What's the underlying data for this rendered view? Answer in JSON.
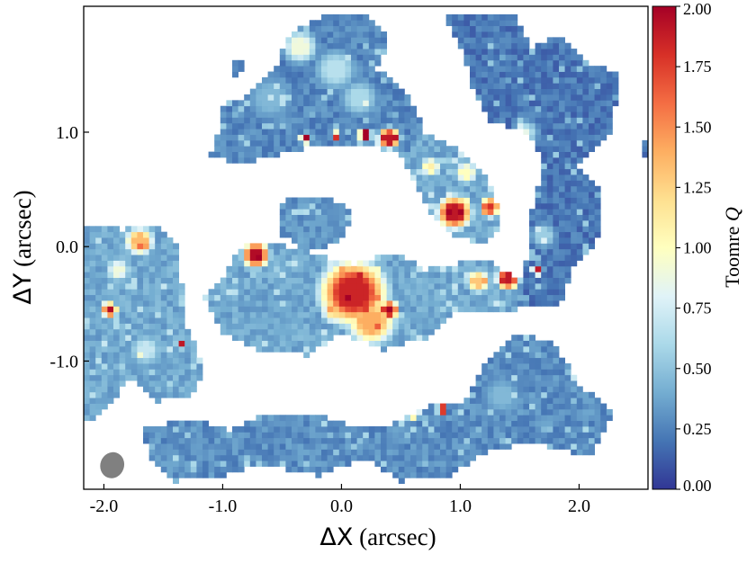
{
  "chart_data": {
    "type": "heatmap",
    "title": "",
    "xlabel": {
      "symbol": "ΔX",
      "unit": "(arcsec)"
    },
    "ylabel": {
      "symbol": "ΔY",
      "unit": "(arcsec)"
    },
    "xlim": [
      -2.17,
      2.58
    ],
    "ylim": [
      -2.12,
      2.1
    ],
    "x_ticks": [
      -2.0,
      -1.0,
      0.0,
      1.0,
      2.0
    ],
    "x_tick_labels": [
      "-2.0",
      "-1.0",
      "0.0",
      "1.0",
      "2.0"
    ],
    "y_ticks": [
      -1.0,
      0.0,
      1.0
    ],
    "y_tick_labels": [
      "-1.0",
      "0.0",
      "1.0"
    ],
    "colorbar": {
      "label_text": "Toomre ",
      "label_symbol": "Q",
      "range": [
        0.0,
        2.0
      ],
      "ticks": [
        0.0,
        0.25,
        0.5,
        0.75,
        1.0,
        1.25,
        1.5,
        1.75,
        2.0
      ],
      "tick_labels": [
        "0.00",
        "0.25",
        "0.50",
        "0.75",
        "1.00",
        "1.25",
        "1.50",
        "1.75",
        "2.00"
      ],
      "colormap": "RdYlBu_r",
      "colormap_stops": [
        "#313695",
        "#4575b4",
        "#74add1",
        "#abd9e9",
        "#e0f3f8",
        "#ffffbf",
        "#fee090",
        "#fdae61",
        "#f46d43",
        "#d73027",
        "#a50026"
      ]
    },
    "beam": {
      "x": -1.93,
      "y": -1.91,
      "major": 0.23,
      "minor": 0.2,
      "angle_deg": 20,
      "color": "#808080"
    },
    "regions": [
      {
        "name": "north-arc",
        "poly": [
          [
            -1.05,
            0.95
          ],
          [
            -1.0,
            1.25
          ],
          [
            -0.8,
            1.3
          ],
          [
            -0.55,
            1.55
          ],
          [
            -0.45,
            1.85
          ],
          [
            -0.1,
            2.05
          ],
          [
            0.25,
            2.0
          ],
          [
            0.4,
            1.8
          ],
          [
            0.3,
            1.55
          ],
          [
            0.55,
            1.35
          ],
          [
            0.7,
            1.05
          ],
          [
            0.55,
            0.8
          ],
          [
            0.25,
            0.88
          ],
          [
            -0.15,
            0.9
          ],
          [
            -0.6,
            0.78
          ],
          [
            -0.9,
            0.72
          ],
          [
            -1.1,
            0.8
          ]
        ],
        "base": 0.18
      },
      {
        "name": "north-spot",
        "poly": [
          [
            -0.95,
            1.6
          ],
          [
            -0.85,
            1.65
          ],
          [
            -0.8,
            1.55
          ],
          [
            -0.9,
            1.5
          ]
        ],
        "base": 0.15
      },
      {
        "name": "east-ridge",
        "poly": [
          [
            0.85,
            2.05
          ],
          [
            1.45,
            2.05
          ],
          [
            1.6,
            1.75
          ],
          [
            1.85,
            1.85
          ],
          [
            2.1,
            1.6
          ],
          [
            2.35,
            1.5
          ],
          [
            2.25,
            0.95
          ],
          [
            2.0,
            0.7
          ],
          [
            2.2,
            0.45
          ],
          [
            2.15,
            0.05
          ],
          [
            1.95,
            -0.2
          ],
          [
            1.85,
            -0.5
          ],
          [
            1.5,
            -0.5
          ],
          [
            1.55,
            -0.15
          ],
          [
            1.6,
            0.3
          ],
          [
            1.7,
            0.75
          ],
          [
            1.55,
            1.0
          ],
          [
            1.25,
            1.1
          ],
          [
            1.1,
            1.4
          ],
          [
            1.0,
            1.75
          ]
        ],
        "base": 0.12
      },
      {
        "name": "east-edge",
        "poly": [
          [
            2.55,
            0.95
          ],
          [
            2.6,
            0.8
          ],
          [
            2.5,
            0.7
          ]
        ],
        "base": 0.12
      },
      {
        "name": "center-arm",
        "poly": [
          [
            0.55,
            1.0
          ],
          [
            0.8,
            0.95
          ],
          [
            1.05,
            0.8
          ],
          [
            1.25,
            0.55
          ],
          [
            1.35,
            0.2
          ],
          [
            1.2,
            0.0
          ],
          [
            0.95,
            0.1
          ],
          [
            0.75,
            0.3
          ],
          [
            0.6,
            0.6
          ],
          [
            0.45,
            0.85
          ]
        ],
        "base": 0.3
      },
      {
        "name": "left-blob",
        "poly": [
          [
            -0.5,
            0.4
          ],
          [
            -0.15,
            0.45
          ],
          [
            0.1,
            0.3
          ],
          [
            0.0,
            0.05
          ],
          [
            -0.3,
            -0.05
          ],
          [
            -0.5,
            0.1
          ]
        ],
        "base": 0.22
      },
      {
        "name": "core-bar",
        "poly": [
          [
            -0.85,
            0.0
          ],
          [
            -0.6,
            0.05
          ],
          [
            -0.3,
            -0.05
          ],
          [
            0.1,
            -0.15
          ],
          [
            0.45,
            -0.05
          ],
          [
            0.7,
            -0.2
          ],
          [
            1.2,
            -0.1
          ],
          [
            1.6,
            -0.35
          ],
          [
            1.5,
            -0.55
          ],
          [
            1.0,
            -0.55
          ],
          [
            0.7,
            -0.8
          ],
          [
            0.35,
            -0.9
          ],
          [
            0.0,
            -0.75
          ],
          [
            -0.3,
            -0.95
          ],
          [
            -0.7,
            -0.9
          ],
          [
            -1.0,
            -0.75
          ],
          [
            -1.15,
            -0.45
          ],
          [
            -0.95,
            -0.2
          ]
        ],
        "base": 0.3
      },
      {
        "name": "west-arc",
        "poly": [
          [
            -2.17,
            0.2
          ],
          [
            -1.85,
            0.15
          ],
          [
            -1.6,
            0.2
          ],
          [
            -1.4,
            0.05
          ],
          [
            -1.35,
            -0.3
          ],
          [
            -1.3,
            -0.7
          ],
          [
            -1.15,
            -1.05
          ],
          [
            -1.25,
            -1.3
          ],
          [
            -1.55,
            -1.35
          ],
          [
            -1.75,
            -1.15
          ],
          [
            -1.9,
            -1.3
          ],
          [
            -2.05,
            -1.5
          ],
          [
            -2.17,
            -1.55
          ]
        ],
        "base": 0.3
      },
      {
        "name": "south-arm",
        "poly": [
          [
            -1.7,
            -1.6
          ],
          [
            -1.3,
            -1.5
          ],
          [
            -0.95,
            -1.6
          ],
          [
            -0.6,
            -1.45
          ],
          [
            -0.25,
            -1.45
          ],
          [
            0.05,
            -1.55
          ],
          [
            0.4,
            -1.55
          ],
          [
            0.7,
            -1.4
          ],
          [
            1.05,
            -1.35
          ],
          [
            1.2,
            -1.05
          ],
          [
            1.5,
            -0.75
          ],
          [
            1.8,
            -0.85
          ],
          [
            2.0,
            -1.2
          ],
          [
            2.3,
            -1.45
          ],
          [
            2.1,
            -1.85
          ],
          [
            1.6,
            -1.7
          ],
          [
            1.2,
            -1.8
          ],
          [
            0.9,
            -2.0
          ],
          [
            0.5,
            -2.05
          ],
          [
            0.2,
            -1.85
          ],
          [
            -0.2,
            -2.0
          ],
          [
            -0.7,
            -1.9
          ],
          [
            -1.0,
            -2.0
          ],
          [
            -1.4,
            -2.05
          ],
          [
            -1.6,
            -1.85
          ]
        ],
        "base": 0.2
      }
    ],
    "features": [
      {
        "x": -0.35,
        "y": 1.75,
        "r": 0.18,
        "q": 0.9
      },
      {
        "x": -0.05,
        "y": 1.55,
        "r": 0.22,
        "q": 0.65
      },
      {
        "x": 0.15,
        "y": 1.3,
        "r": 0.2,
        "q": 0.6
      },
      {
        "x": -0.6,
        "y": 1.3,
        "r": 0.25,
        "q": 0.45
      },
      {
        "x": 0.4,
        "y": 0.95,
        "r": 0.12,
        "q": 1.9
      },
      {
        "x": 0.2,
        "y": 0.98,
        "r": 0.07,
        "q": 2.0
      },
      {
        "x": -0.3,
        "y": 0.95,
        "r": 0.06,
        "q": 2.0
      },
      {
        "x": -0.05,
        "y": 0.97,
        "r": 0.05,
        "q": 1.8
      },
      {
        "x": 0.95,
        "y": 0.3,
        "r": 0.18,
        "q": 1.9
      },
      {
        "x": 1.25,
        "y": 0.35,
        "r": 0.1,
        "q": 1.8
      },
      {
        "x": 1.05,
        "y": 0.65,
        "r": 0.12,
        "q": 1.0
      },
      {
        "x": 0.75,
        "y": 0.7,
        "r": 0.1,
        "q": 1.1
      },
      {
        "x": -0.72,
        "y": -0.07,
        "r": 0.14,
        "q": 1.95
      },
      {
        "x": 0.1,
        "y": -0.4,
        "r": 0.35,
        "q": 1.85
      },
      {
        "x": 0.25,
        "y": -0.65,
        "r": 0.25,
        "q": 1.4
      },
      {
        "x": 0.4,
        "y": -0.55,
        "r": 0.1,
        "q": 2.0
      },
      {
        "x": -0.05,
        "y": -0.55,
        "r": 0.15,
        "q": 1.2
      },
      {
        "x": 1.4,
        "y": -0.28,
        "r": 0.12,
        "q": 1.9
      },
      {
        "x": 1.15,
        "y": -0.3,
        "r": 0.12,
        "q": 1.3
      },
      {
        "x": 1.65,
        "y": -0.2,
        "r": 0.06,
        "q": 1.9
      },
      {
        "x": -1.7,
        "y": 0.05,
        "r": 0.15,
        "q": 1.35
      },
      {
        "x": -1.95,
        "y": -0.55,
        "r": 0.08,
        "q": 1.95
      },
      {
        "x": -1.88,
        "y": -0.2,
        "r": 0.12,
        "q": 0.9
      },
      {
        "x": -1.35,
        "y": -0.85,
        "r": 0.05,
        "q": 1.9
      },
      {
        "x": -1.65,
        "y": -0.9,
        "r": 0.15,
        "q": 0.7
      },
      {
        "x": 0.7,
        "y": -1.0,
        "r": 0.06,
        "q": 1.8
      },
      {
        "x": 0.9,
        "y": -1.05,
        "r": 0.05,
        "q": 1.9
      },
      {
        "x": 0.6,
        "y": -1.45,
        "r": 0.08,
        "q": 1.4
      },
      {
        "x": 0.85,
        "y": -1.42,
        "r": 0.06,
        "q": 1.9
      },
      {
        "x": 1.95,
        "y": -1.1,
        "r": 0.05,
        "q": 2.0
      },
      {
        "x": 1.35,
        "y": -1.3,
        "r": 0.2,
        "q": 0.45
      },
      {
        "x": -0.1,
        "y": -0.9,
        "r": 0.12,
        "q": 0.9
      },
      {
        "x": 1.55,
        "y": 1.0,
        "r": 0.15,
        "q": 0.6
      },
      {
        "x": 1.7,
        "y": 0.1,
        "r": 0.15,
        "q": 0.55
      },
      {
        "x": -1.08,
        "y": 0.03,
        "r": 0.05,
        "q": 2.0
      }
    ]
  }
}
